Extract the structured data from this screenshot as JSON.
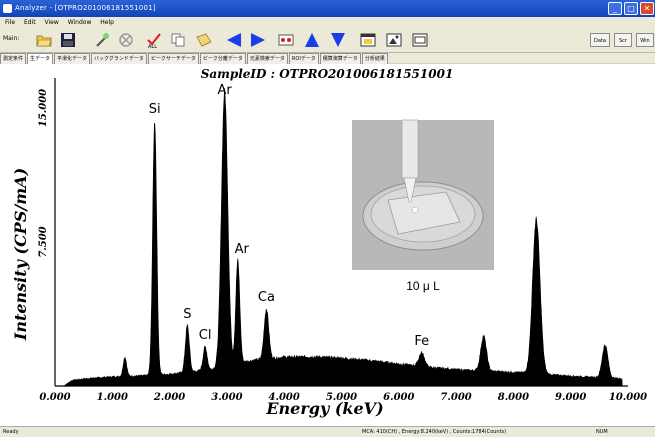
{
  "window": {
    "title": "Analyzer - [OTPRO201006181551001]"
  },
  "menu": {
    "items": [
      "File",
      "Edit",
      "View",
      "Window",
      "Help"
    ]
  },
  "toolbar": {
    "main_label": "Main:",
    "icons": [
      "open-folder-icon",
      "save-icon",
      "wand-icon",
      "clear-icon",
      "delete-all-icon",
      "copy-icon",
      "paste-icon",
      "left-arrow-icon",
      "right-arrow-icon",
      "marker-icon",
      "up-arrow-icon",
      "down-arrow-icon",
      "window-icon",
      "picture-icon",
      "frame-icon"
    ],
    "right_buttons": [
      "Data",
      "Scr",
      "Win"
    ]
  },
  "tabs": [
    "測定条件",
    "生データ",
    "平滑化データ",
    "バックグランドデータ",
    "ピークサーチデータ",
    "ピーク分離データ",
    "元素検索データ",
    "ROIデータ",
    "積算演算データ",
    "分析結果"
  ],
  "active_tab_index": 1,
  "plot": {
    "sample_id": "SampleID : OTPRO201006181551001",
    "inset_label": "10 μ L"
  },
  "chart_data": {
    "type": "line",
    "xlabel": "Energy (keV)",
    "ylabel": "Intensity (CPS/mA)",
    "xlim": [
      0,
      10
    ],
    "ylim": [
      0,
      16000
    ],
    "x_ticks": [
      "0.000",
      "1.000",
      "2.000",
      "3.000",
      "4.000",
      "5.000",
      "6.000",
      "7.000",
      "8.000",
      "9.000",
      "10.000"
    ],
    "y_ticks": [
      "7.500",
      "15.000"
    ],
    "y_tick_values": [
      7500,
      15000
    ],
    "baseline": [
      [
        0.15,
        0
      ],
      [
        0.3,
        300
      ],
      [
        0.6,
        400
      ],
      [
        1.0,
        480
      ],
      [
        1.4,
        520
      ],
      [
        1.7,
        560
      ],
      [
        2.0,
        620
      ],
      [
        2.5,
        780
      ],
      [
        2.8,
        900
      ],
      [
        3.0,
        1100
      ],
      [
        3.5,
        1350
      ],
      [
        4.0,
        1500
      ],
      [
        4.5,
        1520
      ],
      [
        5.0,
        1450
      ],
      [
        5.5,
        1320
      ],
      [
        6.0,
        1150
      ],
      [
        6.5,
        980
      ],
      [
        7.0,
        850
      ],
      [
        7.5,
        780
      ],
      [
        8.0,
        720
      ],
      [
        8.5,
        620
      ],
      [
        9.0,
        520
      ],
      [
        9.5,
        440
      ],
      [
        9.9,
        380
      ]
    ],
    "peaks": [
      {
        "label": "",
        "x": 1.22,
        "height": 1000,
        "width": 0.03
      },
      {
        "label": "Si",
        "x": 1.74,
        "height": 13200,
        "width": 0.035
      },
      {
        "label": "S",
        "x": 2.31,
        "height": 2400,
        "width": 0.035
      },
      {
        "label": "Cl",
        "x": 2.62,
        "height": 1200,
        "width": 0.035
      },
      {
        "label": "Ar",
        "x": 2.96,
        "height": 14200,
        "width": 0.055
      },
      {
        "label": "Ar",
        "x": 3.19,
        "height": 5300,
        "width": 0.035
      },
      {
        "label": "Ca",
        "x": 3.69,
        "height": 2600,
        "width": 0.04
      },
      {
        "label": "Fe",
        "x": 6.4,
        "height": 700,
        "width": 0.05
      },
      {
        "label": "",
        "x": 7.48,
        "height": 1800,
        "width": 0.05
      },
      {
        "label": "",
        "x": 8.4,
        "height": 8000,
        "width": 0.065
      },
      {
        "label": "",
        "x": 9.6,
        "height": 1700,
        "width": 0.05
      }
    ]
  },
  "status": {
    "left": "Ready",
    "mid": "MCA: 410(CH) , Energy:8.240(keV) , Counts:1784(Counts)",
    "right": "NUM"
  }
}
